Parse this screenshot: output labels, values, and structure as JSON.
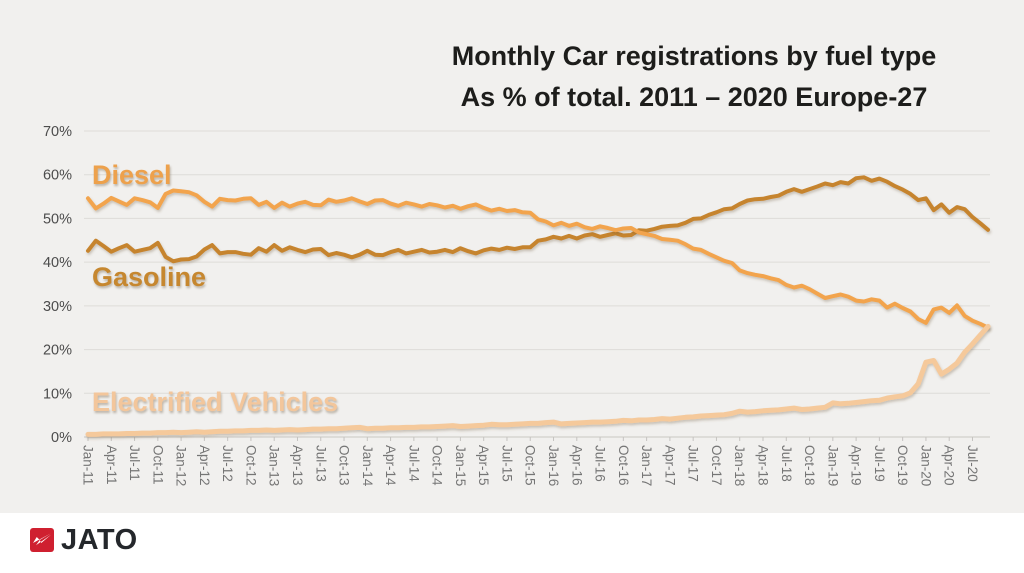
{
  "branding": {
    "logo_text": "JATO"
  },
  "chart_data": {
    "type": "line",
    "title": "Monthly Car registrations by fuel type",
    "subtitle": "As % of total. 2011 – 2020 Europe-27",
    "grid": true,
    "legend_position": "inline-labels",
    "ylim": [
      0,
      70
    ],
    "y_tick_labels": [
      "0%",
      "10%",
      "20%",
      "30%",
      "40%",
      "50%",
      "60%",
      "70%"
    ],
    "x_tick_labels": [
      "Jan-11",
      "Apr-11",
      "Jul-11",
      "Oct-11",
      "Jan-12",
      "Apr-12",
      "Jul-12",
      "Oct-12",
      "Jan-13",
      "Apr-13",
      "Jul-13",
      "Oct-13",
      "Jan-14",
      "Apr-14",
      "Jul-14",
      "Oct-14",
      "Jan-15",
      "Apr-15",
      "Jul-15",
      "Oct-15",
      "Jan-16",
      "Apr-16",
      "Jul-16",
      "Oct-16",
      "Jan-17",
      "Apr-17",
      "Jul-17",
      "Oct-17",
      "Jan-18",
      "Apr-18",
      "Jul-18",
      "Oct-18",
      "Jan-19",
      "Apr-19",
      "Jul-19",
      "Oct-19",
      "Jan-20",
      "Apr-20",
      "Jul-20"
    ],
    "points_per_tick": 3,
    "x_range_note": "monthly points Jan-11 through Sep-20",
    "series": [
      {
        "name": "Gasoline",
        "color": "#c6842f",
        "values": [
          42.6,
          44.9,
          43.7,
          42.4,
          43.2,
          43.9,
          42.4,
          42.8,
          43.2,
          44.4,
          41.2,
          40.2,
          40.6,
          40.7,
          41.3,
          42.9,
          43.9,
          42.0,
          42.3,
          42.3,
          41.9,
          41.7,
          43.2,
          42.4,
          43.9,
          42.6,
          43.4,
          42.8,
          42.3,
          42.9,
          43.0,
          41.6,
          42.1,
          41.7,
          41.1,
          41.7,
          42.6,
          41.7,
          41.6,
          42.3,
          42.8,
          42.0,
          42.4,
          42.8,
          42.2,
          42.4,
          42.8,
          42.3,
          43.2,
          42.5,
          42.0,
          42.7,
          43.1,
          42.8,
          43.3,
          43.0,
          43.4,
          43.4,
          44.9,
          45.2,
          45.8,
          45.4,
          46.0,
          45.4,
          46.1,
          46.4,
          45.8,
          46.2,
          46.6,
          46.1,
          46.2,
          47.3,
          47.2,
          47.6,
          48.1,
          48.3,
          48.4,
          49.0,
          49.9,
          50.0,
          50.8,
          51.4,
          52.1,
          52.3,
          53.3,
          54.1,
          54.4,
          54.5,
          54.9,
          55.2,
          56.1,
          56.7,
          56.1,
          56.7,
          57.3,
          58.0,
          57.6,
          58.3,
          58.0,
          59.2,
          59.4,
          58.6,
          59.1,
          58.4,
          57.4,
          56.6,
          55.6,
          54.2,
          54.6,
          51.9,
          53.2,
          51.3,
          52.6,
          52.1,
          50.3,
          48.9,
          47.4
        ]
      },
      {
        "name": "Diesel",
        "color": "#f2a44d",
        "values": [
          54.6,
          52.3,
          53.4,
          54.7,
          53.9,
          53.1,
          54.6,
          54.2,
          53.7,
          52.4,
          55.6,
          56.4,
          56.2,
          56.0,
          55.3,
          53.8,
          52.7,
          54.5,
          54.2,
          54.1,
          54.5,
          54.6,
          53.1,
          53.8,
          52.4,
          53.6,
          52.7,
          53.4,
          53.8,
          53.1,
          53.0,
          54.3,
          53.8,
          54.1,
          54.6,
          53.9,
          53.3,
          54.1,
          54.2,
          53.4,
          52.9,
          53.6,
          53.2,
          52.7,
          53.3,
          53.0,
          52.5,
          52.9,
          52.2,
          52.8,
          53.2,
          52.4,
          51.8,
          52.2,
          51.7,
          51.9,
          51.4,
          51.3,
          49.8,
          49.3,
          48.4,
          49.0,
          48.3,
          48.8,
          48.0,
          47.6,
          48.2,
          47.8,
          47.3,
          47.7,
          47.8,
          46.8,
          46.4,
          46.0,
          45.3,
          45.1,
          44.9,
          44.1,
          43.1,
          42.8,
          41.9,
          41.1,
          40.3,
          39.8,
          38.1,
          37.5,
          37.1,
          36.8,
          36.3,
          35.9,
          34.8,
          34.2,
          34.6,
          33.8,
          32.8,
          31.8,
          32.2,
          32.6,
          32.1,
          31.2,
          31.0,
          31.5,
          31.2,
          29.6,
          30.5,
          29.5,
          28.7,
          27.0,
          26.1,
          29.2,
          29.6,
          28.4,
          30.1,
          27.7,
          26.6,
          25.9,
          25.0
        ]
      },
      {
        "name": "Electrified Vehicles",
        "color": "#f5c99b",
        "values": [
          0.6,
          0.6,
          0.7,
          0.7,
          0.7,
          0.8,
          0.8,
          0.9,
          0.9,
          1.0,
          1.0,
          1.1,
          1.0,
          1.1,
          1.2,
          1.1,
          1.2,
          1.3,
          1.3,
          1.4,
          1.4,
          1.5,
          1.5,
          1.6,
          1.5,
          1.6,
          1.7,
          1.6,
          1.7,
          1.8,
          1.8,
          1.9,
          1.9,
          2.0,
          2.1,
          2.2,
          1.9,
          2.0,
          2.0,
          2.1,
          2.1,
          2.2,
          2.2,
          2.3,
          2.3,
          2.4,
          2.5,
          2.6,
          2.4,
          2.5,
          2.6,
          2.7,
          2.9,
          2.8,
          2.8,
          2.9,
          3.0,
          3.1,
          3.1,
          3.3,
          3.4,
          3.0,
          3.1,
          3.2,
          3.3,
          3.4,
          3.4,
          3.5,
          3.6,
          3.8,
          3.7,
          3.9,
          3.9,
          4.0,
          4.2,
          4.1,
          4.3,
          4.5,
          4.6,
          4.8,
          4.9,
          5.0,
          5.1,
          5.4,
          5.9,
          5.7,
          5.8,
          6.0,
          6.1,
          6.2,
          6.4,
          6.6,
          6.3,
          6.4,
          6.6,
          6.8,
          7.8,
          7.6,
          7.7,
          7.9,
          8.1,
          8.3,
          8.4,
          8.9,
          9.2,
          9.4,
          10.1,
          12.2,
          17.1,
          17.5,
          14.4,
          15.5,
          16.9,
          19.4,
          21.3,
          23.3,
          25.3
        ]
      }
    ]
  }
}
